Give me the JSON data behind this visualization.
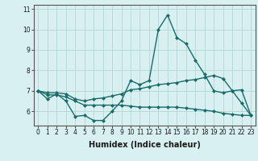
{
  "xlabel": "Humidex (Indice chaleur)",
  "x": [
    0,
    1,
    2,
    3,
    4,
    5,
    6,
    7,
    8,
    9,
    10,
    11,
    12,
    13,
    14,
    15,
    16,
    17,
    18,
    19,
    20,
    21,
    22,
    23
  ],
  "line1": [
    7.0,
    6.6,
    6.85,
    6.5,
    5.75,
    5.8,
    5.55,
    5.55,
    6.0,
    6.5,
    7.5,
    7.3,
    7.5,
    10.0,
    10.7,
    9.6,
    9.3,
    8.5,
    7.8,
    7.0,
    6.9,
    7.0,
    6.4,
    5.8
  ],
  "line2": [
    7.0,
    6.9,
    6.9,
    6.85,
    6.6,
    6.5,
    6.6,
    6.65,
    6.75,
    6.85,
    7.05,
    7.1,
    7.2,
    7.3,
    7.35,
    7.4,
    7.5,
    7.55,
    7.65,
    7.75,
    7.6,
    7.0,
    7.05,
    5.8
  ],
  "line3": [
    7.0,
    6.8,
    6.8,
    6.7,
    6.5,
    6.3,
    6.3,
    6.3,
    6.3,
    6.3,
    6.25,
    6.2,
    6.2,
    6.2,
    6.2,
    6.2,
    6.15,
    6.1,
    6.05,
    6.0,
    5.9,
    5.85,
    5.8,
    5.8
  ],
  "color": "#1a6b6b",
  "bg_color": "#d8f0f0",
  "ylim": [
    5.3,
    11.2
  ],
  "yticks": [
    6,
    7,
    8,
    9,
    10,
    11
  ],
  "grid_color": "#b8dada",
  "linewidth": 1.0,
  "markersize": 2.5,
  "tick_fontsize": 5.5,
  "xlabel_fontsize": 7
}
